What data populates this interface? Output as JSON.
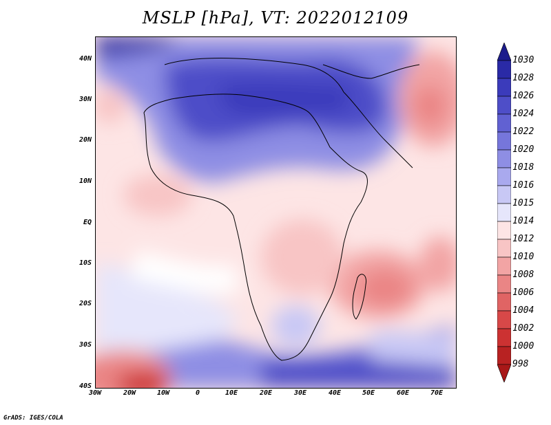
{
  "title": "MSLP [hPa], VT: 2022012109",
  "credit": "GrADS: IGES/COLA",
  "lat_labels": [
    "40N",
    "30N",
    "20N",
    "10N",
    "EQ",
    "10S",
    "20S",
    "30S",
    "40S"
  ],
  "lon_labels": [
    "30W",
    "20W",
    "10W",
    "0",
    "10E",
    "20E",
    "30E",
    "40E",
    "50E",
    "60E",
    "70E"
  ],
  "colorbar": {
    "levels": [
      "1030",
      "1028",
      "1026",
      "1024",
      "1022",
      "1020",
      "1018",
      "1016",
      "1015",
      "1014",
      "1012",
      "1010",
      "1008",
      "1006",
      "1004",
      "1002",
      "1000",
      "998"
    ],
    "colors": [
      "#1c1c8c",
      "#2a2aa6",
      "#3b3bbb",
      "#4e4ec8",
      "#6161d2",
      "#7676db",
      "#8e8ee4",
      "#a9a9ee",
      "#c8c8f5",
      "#e6e6fb",
      "#fde5e5",
      "#f8c5c5",
      "#f2a4a4",
      "#ea8585",
      "#e06464",
      "#d84848",
      "#cc3232",
      "#b82222",
      "#a81818"
    ]
  },
  "colors": {
    "high": "#3b3bbb",
    "low": "#e06464",
    "land_border": "#000000"
  }
}
